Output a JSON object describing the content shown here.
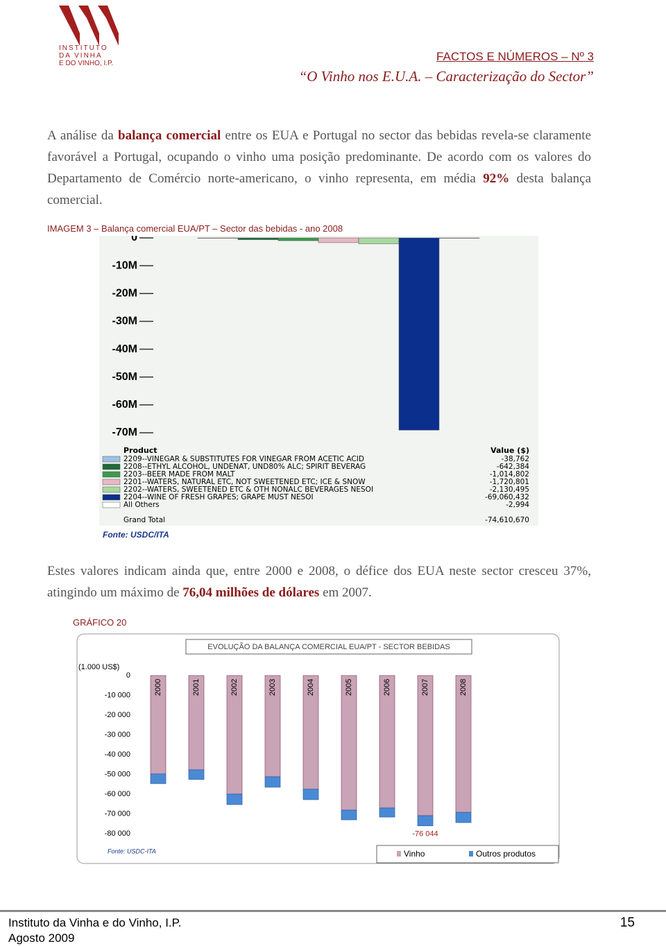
{
  "header": {
    "logo": [
      "INSTITUTO",
      "DA VINHA",
      "E DO VINHO, I.P."
    ],
    "series_title": "FACTOS E NÚMEROS – Nº 3",
    "subtitle": "“O Vinho nos E.U.A. – Caracterização do Sector”"
  },
  "paragraphs": [
    [
      "A análise da ",
      "balança comercial",
      " entre os EUA e Portugal no sector das bebidas revela-se claramente favorável a Portugal, ocupando o vinho uma posição predominante. De acordo com os valores do Departamento de Comércio norte-americano, o vinho representa, em média ",
      "92%",
      " desta balança comercial."
    ],
    [
      "Estes valores indicam ainda que, entre 2000 e 2008, o défice dos EUA neste sector cresceu 37%, atingindo um máximo de ",
      "76,04 milhões de dólares",
      " em 2007."
    ]
  ],
  "figure_caption": "IMAGEM 3 – Balança comercial EUA/PT – Sector das bebidas - ano 2008",
  "figure_source": "Fonte: USDC/ITA",
  "graph_caption": "GRÁFICO 20",
  "chart_data": [
    {
      "type": "bar",
      "categories": [
        "2209--VINEGAR & SUBSTITUTES FOR VINEGAR FROM ACETIC ACID",
        "2208--ETHYL ALCOHOL, UNDENAT, UND80% ALC; SPIRIT BEVERAG",
        "2203--BEER MADE FROM MALT",
        "2201--WATERS, NATURAL ETC, NOT SWEETENED ETC; ICE & SNOW",
        "2202--WATERS, SWEETENED ETC & OTH NONALC BEVERAGES NESOI",
        "2204--WINE OF FRESH GRAPES; GRAPE MUST NESOI",
        "All Others"
      ],
      "values": [
        -38762,
        -642384,
        -1014802,
        -1720801,
        -2130495,
        -69060432,
        -2994
      ],
      "value_labels": [
        "-38,762",
        "-642,384",
        "-1,014,802",
        "-1,720,801",
        "-2,130,495",
        "-69,060,432",
        "-2,994"
      ],
      "colors": [
        "#9cc3e6",
        "#1f6b3a",
        "#3c9a4e",
        "#e8b8c4",
        "#a8d8a0",
        "#0b2f8c",
        "#ffffff"
      ],
      "table_headers": [
        "Product",
        "Value ($)"
      ],
      "grand_total": {
        "value": -74610670,
        "label": "-74,610,670",
        "name": "Grand Total"
      },
      "ylim": [
        -74000000,
        0
      ],
      "yticks": [
        0,
        {
          "value": -10000000,
          "label": "-10M"
        },
        {
          "value": -20000000,
          "label": "-20M"
        },
        {
          "value": -30000000,
          "label": "-30M"
        },
        {
          "value": -40000000,
          "label": "-40M"
        },
        {
          "value": -50000000,
          "label": "-50M"
        },
        {
          "value": -60000000,
          "label": "-60M"
        },
        {
          "value": -70000000,
          "label": "-70M"
        }
      ]
    },
    {
      "type": "bar",
      "stacked": true,
      "title": "EVOLUÇÃO DA BALANÇA COMERCIAL EUA/PT - SECTOR BEBIDAS",
      "y_label": "(1.000 US$)",
      "categories": [
        "2000",
        "2001",
        "2002",
        "2003",
        "2004",
        "2005",
        "2006",
        "2007",
        "2008"
      ],
      "series": [
        {
          "name": "Vinho",
          "color": "#c9a3b6",
          "values": [
            -49800,
            -47700,
            -60000,
            -51200,
            -57500,
            -68100,
            -67000,
            -70900,
            -69200
          ]
        },
        {
          "name": "Outros produtos",
          "color": "#4a8ad4",
          "values": [
            -4900,
            -4900,
            -5300,
            -5300,
            -5300,
            -4900,
            -4600,
            -5144,
            -5200
          ]
        }
      ],
      "annotation": {
        "value": -76044,
        "label": "-76 044",
        "category": 7
      },
      "source": "Fonte: USDC-ITA",
      "ylim": [
        -80000,
        0
      ],
      "yticks": [
        0,
        {
          "value": -10000,
          "label": "-10 000"
        },
        {
          "value": -20000,
          "label": "-20 000"
        },
        {
          "value": -30000,
          "label": "-30 000"
        },
        {
          "value": -40000,
          "label": "-40 000"
        },
        {
          "value": -50000,
          "label": "-50 000"
        },
        {
          "value": -60000,
          "label": "-60 000"
        },
        {
          "value": -70000,
          "label": "-70 000"
        },
        {
          "value": -80000,
          "label": "-80 000"
        }
      ]
    }
  ],
  "footer": {
    "organization": "Instituto da Vinha e do Vinho, I.P.",
    "date": "Agosto 2009",
    "page": "15"
  }
}
